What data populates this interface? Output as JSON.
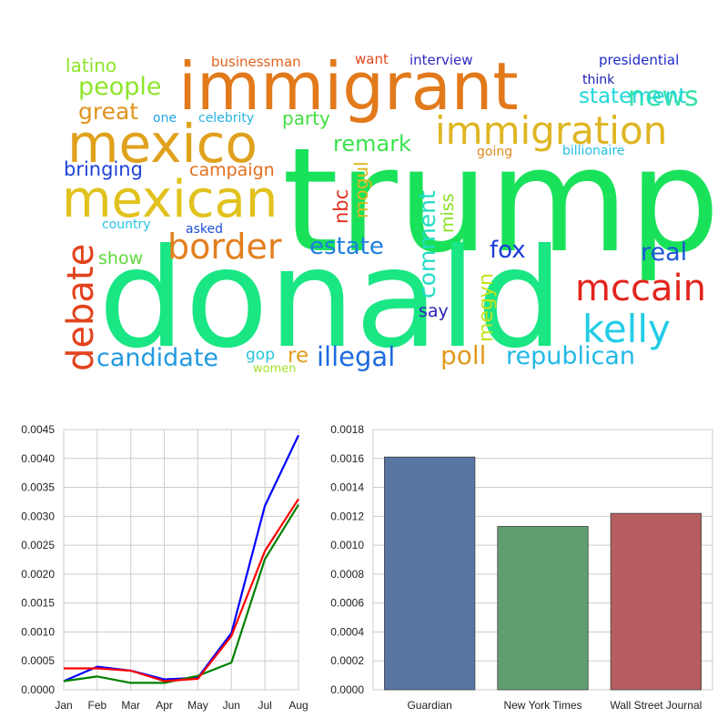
{
  "word_cloud": {
    "words": [
      {
        "text": "trump",
        "color": "#19e25a"
      },
      {
        "text": "donald",
        "color": "#1ae684"
      },
      {
        "text": "immigrant",
        "color": "#e27a1c"
      },
      {
        "text": "mexico",
        "color": "#e0a11d"
      },
      {
        "text": "mexican",
        "color": "#e1c21e"
      },
      {
        "text": "immigration",
        "color": "#dfb522"
      },
      {
        "text": "border",
        "color": "#e27f1d"
      },
      {
        "text": "debate",
        "color": "#e2431d"
      },
      {
        "text": "kelly",
        "color": "#22cde6"
      },
      {
        "text": "mccain",
        "color": "#e2241d"
      },
      {
        "text": "news",
        "color": "#37e3a7"
      },
      {
        "text": "people",
        "color": "#8ee52a"
      },
      {
        "text": "great",
        "color": "#e0931d"
      },
      {
        "text": "remark",
        "color": "#3ae24d"
      },
      {
        "text": "statement",
        "color": "#20d8d8"
      },
      {
        "text": "estate",
        "color": "#1f7fe0"
      },
      {
        "text": "fox",
        "color": "#1d3ad8"
      },
      {
        "text": "real",
        "color": "#1d55d8"
      },
      {
        "text": "comment",
        "color": "#20dcc4"
      },
      {
        "text": "candidate",
        "color": "#229ae0"
      },
      {
        "text": "illegal",
        "color": "#1d6ae0"
      },
      {
        "text": "republican",
        "color": "#22b9e6"
      },
      {
        "text": "poll",
        "color": "#e09a1d"
      },
      {
        "text": "campaign",
        "color": "#e26f1c"
      },
      {
        "text": "bringing",
        "color": "#1d43d8"
      },
      {
        "text": "party",
        "color": "#42df41"
      },
      {
        "text": "megyn",
        "color": "#c3e21f"
      },
      {
        "text": "re",
        "color": "#e29c1d"
      },
      {
        "text": "nbc",
        "color": "#e2311d"
      },
      {
        "text": "mogul",
        "color": "#e0b81d"
      },
      {
        "text": "miss",
        "color": "#88e21e"
      },
      {
        "text": "show",
        "color": "#5ed83a"
      },
      {
        "text": "gop",
        "color": "#26c6d8"
      },
      {
        "text": "say",
        "color": "#2a22b0"
      },
      {
        "text": "latino",
        "color": "#8ee52a"
      },
      {
        "text": "businessman",
        "color": "#e0621d"
      },
      {
        "text": "want",
        "color": "#e2461d"
      },
      {
        "text": "interview",
        "color": "#2d2ac0"
      },
      {
        "text": "presidential",
        "color": "#1d2ac8"
      },
      {
        "text": "think",
        "color": "#1d1db0"
      },
      {
        "text": "one",
        "color": "#22a4e6"
      },
      {
        "text": "celebrity",
        "color": "#26b2e0"
      },
      {
        "text": "going",
        "color": "#e2881d"
      },
      {
        "text": "billionaire",
        "color": "#22bfe6"
      },
      {
        "text": "country",
        "color": "#26c6e6"
      },
      {
        "text": "asked",
        "color": "#1d4ed8"
      },
      {
        "text": "women",
        "color": "#a3e22a"
      }
    ]
  },
  "chart_data": [
    {
      "type": "line",
      "x": [
        "Jan",
        "Feb",
        "Mar",
        "Apr",
        "May",
        "Jun",
        "Jul",
        "Aug"
      ],
      "ylim": [
        0,
        0.0045
      ],
      "yticks": [
        "0.0000",
        "0.0005",
        "0.0010",
        "0.0015",
        "0.0020",
        "0.0025",
        "0.0030",
        "0.0035",
        "0.0040",
        "0.0045"
      ],
      "grid": true,
      "series": [
        {
          "color": "#0000ff",
          "values": [
            0.00015,
            0.0004,
            0.00033,
            0.00018,
            0.00021,
            0.00098,
            0.00318,
            0.0044
          ]
        },
        {
          "color": "#008000",
          "values": [
            0.00015,
            0.00023,
            0.00012,
            0.00012,
            0.00024,
            0.00047,
            0.00226,
            0.0032
          ]
        },
        {
          "color": "#ff0000",
          "values": [
            0.00037,
            0.00037,
            0.00033,
            0.00015,
            0.00019,
            0.00093,
            0.0024,
            0.0033
          ]
        }
      ]
    },
    {
      "type": "bar",
      "categories": [
        "Guardian",
        "New York Times",
        "Wall Street Journal"
      ],
      "values": [
        0.00161,
        0.00113,
        0.00122
      ],
      "colors": [
        "#5875a4",
        "#5f9e6e",
        "#b55d60"
      ],
      "ylim": [
        0,
        0.0018
      ],
      "yticks": [
        "0.0000",
        "0.0002",
        "0.0004",
        "0.0006",
        "0.0008",
        "0.0010",
        "0.0012",
        "0.0014",
        "0.0016",
        "0.0018"
      ],
      "grid": true
    }
  ]
}
